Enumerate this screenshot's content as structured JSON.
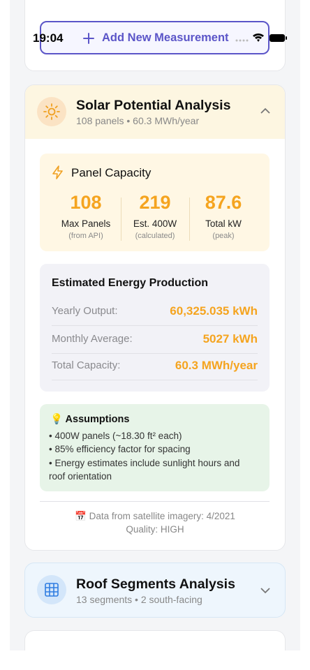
{
  "status_bar": {
    "time": "19:04"
  },
  "add_button": {
    "label": "Add New Measurement"
  },
  "solar_card": {
    "title": "Solar Potential Analysis",
    "subtitle": "108 panels • 60.3 MWh/year",
    "panel_capacity": {
      "title": "Panel Capacity",
      "stats": [
        {
          "value": "108",
          "label": "Max Panels",
          "note": "(from API)"
        },
        {
          "value": "219",
          "label": "Est. 400W",
          "note": "(calculated)"
        },
        {
          "value": "87.6",
          "label": "Total kW",
          "note": "(peak)"
        }
      ]
    },
    "energy": {
      "title": "Estimated Energy Production",
      "rows": [
        {
          "label": "Yearly Output:",
          "value": "60,325.035 kWh"
        },
        {
          "label": "Monthly Average:",
          "value": "5027 kWh"
        },
        {
          "label": "Total Capacity:",
          "value": "60.3 MWh/year"
        }
      ]
    },
    "assumptions": {
      "title": "💡 Assumptions",
      "items": [
        "• 400W panels (~18.30 ft² each)",
        "• 85% efficiency factor for spacing",
        "• Energy estimates include sunlight hours and",
        "roof orientation"
      ]
    },
    "footer": {
      "source": "📅 Data from satellite imagery: 4/2021",
      "quality": "Quality: HIGH"
    }
  },
  "roof_card": {
    "title": "Roof Segments Analysis",
    "subtitle": "13 segments • 2 south-facing"
  }
}
